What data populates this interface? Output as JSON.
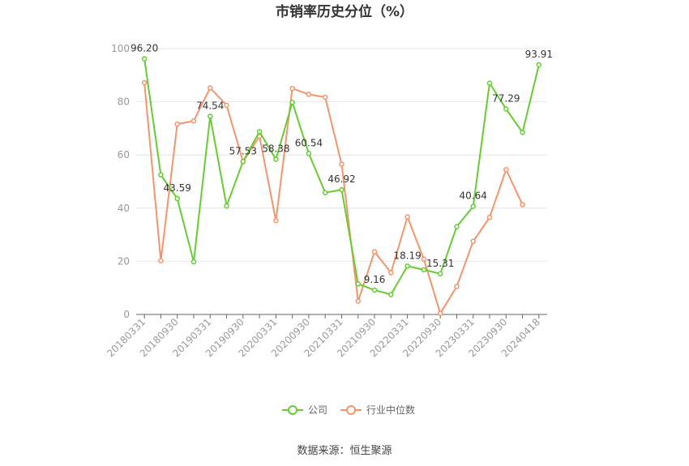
{
  "chart_data": {
    "type": "line",
    "title": "市销率历史分位（%）",
    "ylim": [
      0,
      100
    ],
    "yticks": [
      0,
      20,
      40,
      60,
      80,
      100
    ],
    "xtick_labels": [
      "20180331",
      "20180930",
      "20190331",
      "20190930",
      "20200331",
      "20200930",
      "20210331",
      "20210930",
      "20220331",
      "20220930",
      "20230331",
      "20230930",
      "20240418"
    ],
    "x": [
      "20180331",
      "20180630",
      "20180930",
      "20181231",
      "20190331",
      "20190630",
      "20190930",
      "20191231",
      "20200331",
      "20200630",
      "20200930",
      "20201231",
      "20210331",
      "20210630",
      "20210930",
      "20211231",
      "20220331",
      "20220630",
      "20220930",
      "20221231",
      "20230331",
      "20230630",
      "20230930",
      "20231231",
      "20240418"
    ],
    "grid": true,
    "legend_position": "bottom",
    "series": [
      {
        "name": "公司",
        "color": "#66cc33",
        "values": [
          96.2,
          52.5,
          43.59,
          19.8,
          74.54,
          40.8,
          57.53,
          68.8,
          58.38,
          79.8,
          60.54,
          45.8,
          46.92,
          11.5,
          9.16,
          7.5,
          18.19,
          16.8,
          15.31,
          33.0,
          40.64,
          87.0,
          77.29,
          68.5,
          93.91
        ]
      },
      {
        "name": "行业中位数",
        "color": "#f4946b",
        "values": [
          87.2,
          20.2,
          71.6,
          72.8,
          85.2,
          78.7,
          57.5,
          67.0,
          35.3,
          85.0,
          82.8,
          81.7,
          56.5,
          5.0,
          23.6,
          15.7,
          36.7,
          20.8,
          0.4,
          10.5,
          27.5,
          36.5,
          54.5,
          41.3,
          null
        ]
      }
    ],
    "annotations": [
      {
        "index": 0,
        "text": "96.20"
      },
      {
        "index": 2,
        "text": "43.59"
      },
      {
        "index": 4,
        "text": "74.54"
      },
      {
        "index": 6,
        "text": "57.53"
      },
      {
        "index": 8,
        "text": "58.38"
      },
      {
        "index": 10,
        "text": "60.54"
      },
      {
        "index": 12,
        "text": "46.92"
      },
      {
        "index": 14,
        "text": "9.16"
      },
      {
        "index": 16,
        "text": "18.19"
      },
      {
        "index": 18,
        "text": "15.31"
      },
      {
        "index": 20,
        "text": "40.64"
      },
      {
        "index": 22,
        "text": "77.29"
      },
      {
        "index": 24,
        "text": "93.91"
      }
    ]
  },
  "source_text": "数据来源：恒生聚源"
}
